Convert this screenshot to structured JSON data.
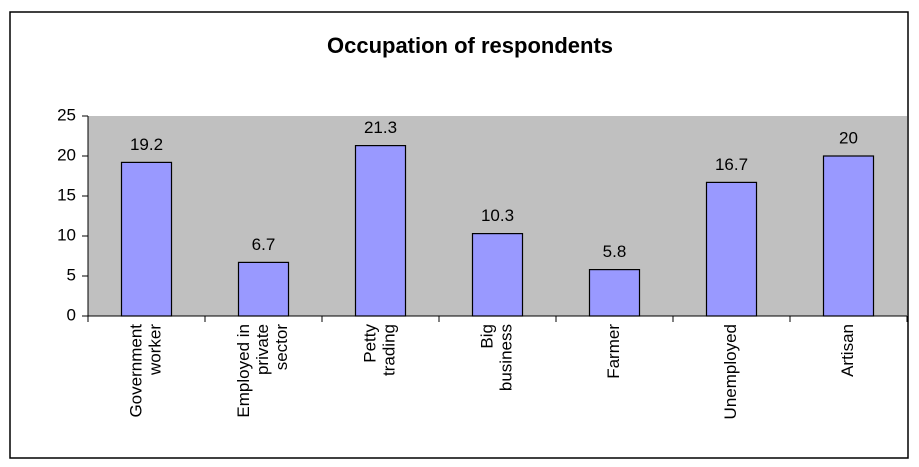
{
  "chart_data": {
    "type": "bar",
    "title": "Occupation of respondents",
    "categories": [
      [
        "Government",
        "worker"
      ],
      [
        "Employed in",
        "private",
        "sector"
      ],
      [
        "Petty",
        "trading"
      ],
      [
        "Big",
        "business"
      ],
      [
        "Farmer"
      ],
      [
        "Unemployed"
      ],
      [
        "Artisan"
      ]
    ],
    "values": [
      19.2,
      6.7,
      21.3,
      10.3,
      5.8,
      16.7,
      20
    ],
    "color": "#9999ff",
    "ylim": [
      0,
      25
    ],
    "yticks": [
      0,
      5,
      10,
      15,
      20,
      25
    ]
  }
}
